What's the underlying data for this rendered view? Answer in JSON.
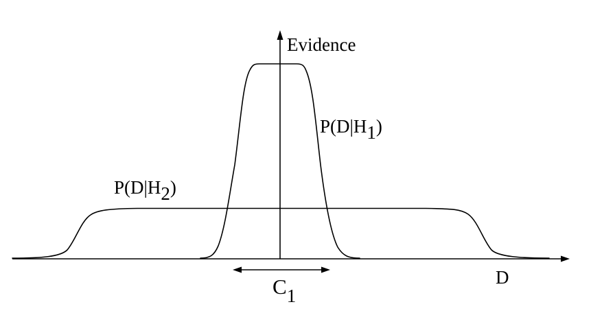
{
  "labels": {
    "y_axis": "Evidence",
    "x_axis": "D",
    "h1": {
      "base": "P(D|H",
      "sub": "1",
      "close": ")"
    },
    "h2": {
      "base": "P(D|H",
      "sub": "2",
      "close": ")"
    },
    "c1": {
      "base": "C",
      "sub": "1"
    }
  },
  "curves": [
    {
      "name": "narrow-peaked",
      "label_ref": "h1"
    },
    {
      "name": "broad-flat",
      "label_ref": "h2"
    }
  ],
  "colors": {
    "stroke": "#000000",
    "background": "#ffffff"
  }
}
